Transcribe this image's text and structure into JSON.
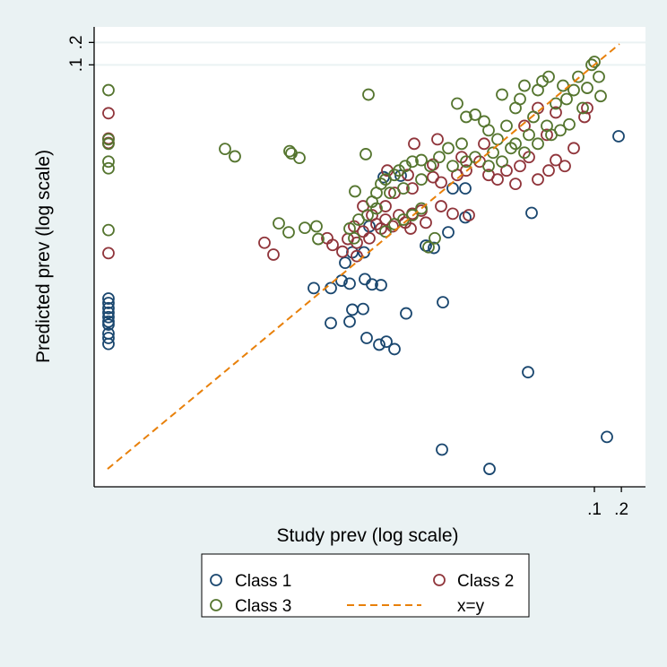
{
  "chart_data": {
    "type": "scatter",
    "xlabel": "Study prev (log scale)",
    "ylabel": "Predicted prev (log scale)",
    "x_scale": "log10",
    "y_scale": "log10",
    "xlim_log10": [
      -6.58,
      -0.43
    ],
    "ylim_log10": [
      -6.67,
      -0.49
    ],
    "x_ticks": [
      {
        "value": 0.1,
        "label": ".1"
      },
      {
        "value": 0.2,
        "label": ".2"
      }
    ],
    "y_ticks": [
      {
        "value": 0.1,
        "label": ".1"
      },
      {
        "value": 0.2,
        "label": ".2"
      }
    ],
    "grid": "horizontal at y ticks",
    "legend_position": "bottom",
    "colors": {
      "class1": "#1a476f",
      "class2": "#90353b",
      "class3": "#55752f",
      "xy": "#e8800a",
      "background": "#eaf2f3"
    },
    "series": [
      {
        "name": "Class 1",
        "marker": "hollow-circle",
        "color": "#1a476f",
        "points_log10": [
          [
            -6.42,
            -4.14
          ],
          [
            -6.42,
            -4.2
          ],
          [
            -6.42,
            -4.27
          ],
          [
            -6.42,
            -4.33
          ],
          [
            -6.42,
            -4.39
          ],
          [
            -6.42,
            -4.45
          ],
          [
            -6.42,
            -4.49
          ],
          [
            -6.42,
            -4.61
          ],
          [
            -6.42,
            -4.67
          ],
          [
            -6.42,
            -4.75
          ],
          [
            -0.73,
            -1.96
          ],
          [
            -1.7,
            -2.99
          ],
          [
            -1.74,
            -5.13
          ],
          [
            -2.7,
            -6.17
          ],
          [
            -2.17,
            -6.43
          ],
          [
            -0.86,
            -6.0
          ],
          [
            -4.13,
            -4.0
          ],
          [
            -3.94,
            -4.0
          ],
          [
            -3.82,
            -3.9
          ],
          [
            -3.73,
            -3.94
          ],
          [
            -3.56,
            -3.88
          ],
          [
            -3.48,
            -3.95
          ],
          [
            -3.38,
            -3.96
          ],
          [
            -3.94,
            -4.47
          ],
          [
            -3.73,
            -4.45
          ],
          [
            -3.7,
            -4.29
          ],
          [
            -3.58,
            -4.28
          ],
          [
            -3.54,
            -4.67
          ],
          [
            -3.4,
            -4.76
          ],
          [
            -3.32,
            -4.72
          ],
          [
            -3.23,
            -4.82
          ],
          [
            -3.1,
            -4.34
          ],
          [
            -2.69,
            -4.19
          ],
          [
            -3.78,
            -3.66
          ],
          [
            -3.7,
            -3.52
          ],
          [
            -3.57,
            -3.52
          ],
          [
            -2.88,
            -3.43
          ],
          [
            -2.79,
            -3.46
          ],
          [
            -2.63,
            -3.25
          ],
          [
            -2.44,
            -3.05
          ],
          [
            -2.44,
            -2.66
          ],
          [
            -2.58,
            -2.66
          ],
          [
            -3.35,
            -2.51
          ],
          [
            -3.16,
            -2.49
          ],
          [
            -3.51,
            -3.17
          ]
        ]
      },
      {
        "name": "Class 2",
        "marker": "hollow-circle",
        "color": "#90353b",
        "points_log10": [
          [
            -6.42,
            -1.65
          ],
          [
            -6.42,
            -1.99
          ],
          [
            -6.42,
            -2.05
          ],
          [
            -6.42,
            -3.53
          ],
          [
            -4.68,
            -3.39
          ],
          [
            -4.58,
            -3.55
          ],
          [
            -3.92,
            -3.42
          ],
          [
            -3.75,
            -3.34
          ],
          [
            -3.65,
            -3.39
          ],
          [
            -3.58,
            -3.24
          ],
          [
            -3.51,
            -3.33
          ],
          [
            -3.43,
            -3.14
          ],
          [
            -3.38,
            -3.2
          ],
          [
            -3.33,
            -3.08
          ],
          [
            -3.25,
            -3.17
          ],
          [
            -3.18,
            -3.02
          ],
          [
            -3.11,
            -3.12
          ],
          [
            -3.03,
            -3.0
          ],
          [
            -2.93,
            -2.96
          ],
          [
            -3.05,
            -3.2
          ],
          [
            -2.88,
            -3.12
          ],
          [
            -2.71,
            -2.9
          ],
          [
            -2.58,
            -3.0
          ],
          [
            -2.4,
            -3.02
          ],
          [
            -3.81,
            -3.51
          ],
          [
            -3.65,
            -3.57
          ],
          [
            -3.23,
            -2.72
          ],
          [
            -3.03,
            -2.66
          ],
          [
            -3.01,
            -2.06
          ],
          [
            -2.75,
            -2.0
          ],
          [
            -2.71,
            -2.58
          ],
          [
            -2.53,
            -2.48
          ],
          [
            -2.43,
            -2.42
          ],
          [
            -2.28,
            -2.3
          ],
          [
            -2.18,
            -2.48
          ],
          [
            -2.08,
            -2.54
          ],
          [
            -1.98,
            -2.42
          ],
          [
            -1.88,
            -2.6
          ],
          [
            -1.83,
            -2.36
          ],
          [
            -1.73,
            -2.24
          ],
          [
            -1.63,
            -2.54
          ],
          [
            -1.51,
            -2.42
          ],
          [
            -1.43,
            -2.28
          ],
          [
            -1.33,
            -2.36
          ],
          [
            -1.23,
            -2.12
          ],
          [
            -1.11,
            -1.7
          ],
          [
            -1.08,
            -1.58
          ],
          [
            -1.63,
            -1.58
          ],
          [
            -1.78,
            -1.82
          ],
          [
            -1.53,
            -1.94
          ],
          [
            -1.43,
            -1.64
          ],
          [
            -2.23,
            -2.06
          ],
          [
            -2.48,
            -2.24
          ],
          [
            -2.8,
            -2.34
          ],
          [
            -3.08,
            -2.48
          ],
          [
            -3.33,
            -2.9
          ],
          [
            -3.48,
            -3.02
          ],
          [
            -3.68,
            -3.17
          ],
          [
            -3.58,
            -2.9
          ],
          [
            -3.31,
            -2.42
          ],
          [
            -3.98,
            -3.33
          ],
          [
            -2.8,
            -2.51
          ]
        ]
      },
      {
        "name": "Class 3",
        "marker": "hollow-circle",
        "color": "#55752f",
        "points_log10": [
          [
            -6.42,
            -1.34
          ],
          [
            -6.42,
            -2.0
          ],
          [
            -6.42,
            -2.06
          ],
          [
            -6.42,
            -2.3
          ],
          [
            -6.42,
            -2.39
          ],
          [
            -6.42,
            -3.22
          ],
          [
            -5.12,
            -2.13
          ],
          [
            -5.01,
            -2.23
          ],
          [
            -4.4,
            -2.16
          ],
          [
            -4.38,
            -2.19
          ],
          [
            -4.29,
            -2.25
          ],
          [
            -4.52,
            -3.13
          ],
          [
            -4.41,
            -3.25
          ],
          [
            -4.23,
            -3.19
          ],
          [
            -4.1,
            -3.17
          ],
          [
            -4.08,
            -3.34
          ],
          [
            -3.52,
            -1.4
          ],
          [
            -3.67,
            -2.7
          ],
          [
            -3.55,
            -2.2
          ],
          [
            -3.53,
            -3.02
          ],
          [
            -3.63,
            -3.08
          ],
          [
            -3.48,
            -2.84
          ],
          [
            -3.43,
            -2.72
          ],
          [
            -3.38,
            -2.6
          ],
          [
            -3.33,
            -2.54
          ],
          [
            -3.23,
            -2.48
          ],
          [
            -3.18,
            -2.42
          ],
          [
            -3.11,
            -2.36
          ],
          [
            -3.03,
            -2.3
          ],
          [
            -2.93,
            -2.28
          ],
          [
            -2.83,
            -2.36
          ],
          [
            -2.78,
            -3.33
          ],
          [
            -2.85,
            -3.45
          ],
          [
            -2.53,
            -1.52
          ],
          [
            -2.43,
            -1.7
          ],
          [
            -2.33,
            -1.67
          ],
          [
            -2.23,
            -1.76
          ],
          [
            -2.18,
            -1.88
          ],
          [
            -2.08,
            -2.0
          ],
          [
            -2.03,
            -1.4
          ],
          [
            -1.98,
            -1.82
          ],
          [
            -1.88,
            -1.58
          ],
          [
            -1.83,
            -1.46
          ],
          [
            -1.78,
            -1.28
          ],
          [
            -1.73,
            -1.94
          ],
          [
            -1.68,
            -1.7
          ],
          [
            -1.63,
            -1.34
          ],
          [
            -1.58,
            -1.22
          ],
          [
            -1.51,
            -1.16
          ],
          [
            -1.43,
            -1.52
          ],
          [
            -1.35,
            -1.28
          ],
          [
            -1.31,
            -1.46
          ],
          [
            -1.23,
            -1.34
          ],
          [
            -1.18,
            -1.16
          ],
          [
            -1.13,
            -1.58
          ],
          [
            -1.08,
            -1.31
          ],
          [
            -1.03,
            -1.0
          ],
          [
            -1.0,
            -0.96
          ],
          [
            -0.95,
            -1.16
          ],
          [
            -0.93,
            -1.42
          ],
          [
            -1.28,
            -1.8
          ],
          [
            -1.38,
            -1.88
          ],
          [
            -1.48,
            -1.94
          ],
          [
            -1.63,
            -2.06
          ],
          [
            -1.78,
            -2.18
          ],
          [
            -1.93,
            -2.12
          ],
          [
            -2.13,
            -2.18
          ],
          [
            -2.33,
            -2.24
          ],
          [
            -2.48,
            -2.06
          ],
          [
            -2.63,
            -2.12
          ],
          [
            -2.73,
            -2.24
          ],
          [
            -2.93,
            -2.54
          ],
          [
            -3.13,
            -2.66
          ],
          [
            -3.28,
            -2.72
          ],
          [
            -3.43,
            -2.93
          ],
          [
            -3.33,
            -3.24
          ],
          [
            -3.23,
            -3.14
          ],
          [
            -3.13,
            -3.08
          ],
          [
            -3.03,
            -3.02
          ],
          [
            -2.93,
            -2.93
          ],
          [
            -2.58,
            -2.36
          ],
          [
            -2.43,
            -2.3
          ],
          [
            -2.18,
            -2.36
          ],
          [
            -2.03,
            -2.3
          ],
          [
            -1.53,
            -1.82
          ],
          [
            -1.88,
            -2.06
          ],
          [
            -3.68,
            -3.33
          ],
          [
            -3.73,
            -3.2
          ]
        ]
      },
      {
        "name": "x=y",
        "type": "line",
        "style": "dashed",
        "color": "#e8800a",
        "x_log10": [
          -6.43,
          -0.72
        ]
      }
    ],
    "legend": [
      "Class 1",
      "Class 2",
      "Class 3",
      "x=y"
    ]
  }
}
